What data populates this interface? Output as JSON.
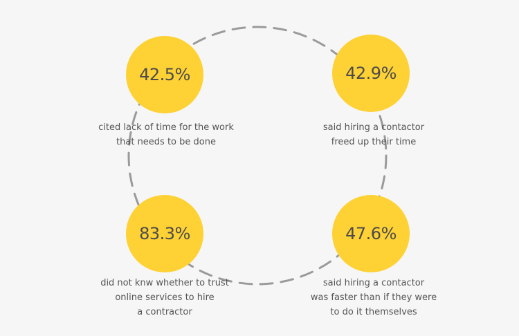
{
  "theme": {
    "background": "#f6f6f6",
    "circle_color": "#fed134",
    "ring_color": "#9a9a9a",
    "value_color": "#4b4b4b",
    "caption_color": "#555555"
  },
  "stats": [
    {
      "value": "42.5%",
      "caption": "cited lack of time for the work\n that needs to be done"
    },
    {
      "value": "42.9%",
      "caption": "said hiring a contactor\n freed up their time"
    },
    {
      "value": "83.3%",
      "caption": "did not knw whether to trust\nonline services to hire\na contractor"
    },
    {
      "value": "47.6%",
      "caption": "said hiring a contactor\nwas faster than if they were\nto do it themselves"
    }
  ]
}
